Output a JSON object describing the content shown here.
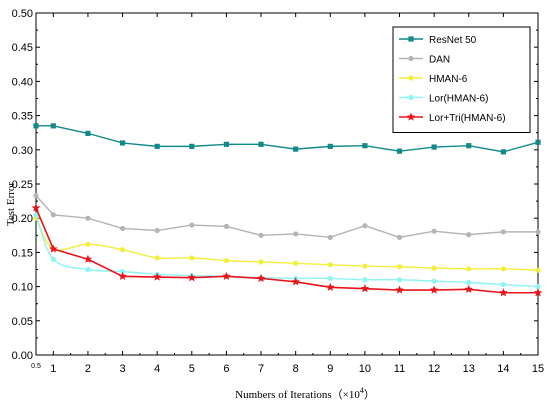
{
  "chart_data": {
    "type": "line",
    "xlabel": "Numbers of Iterations（×10",
    "xlabel_exp": "4",
    "xlabel_close": "）",
    "ylabel": "Test  Error",
    "x": [
      0.5,
      1,
      2,
      3,
      4,
      5,
      6,
      7,
      8,
      9,
      10,
      11,
      12,
      13,
      14,
      15
    ],
    "xlim": [
      0.5,
      15
    ],
    "xticks": [
      "0.5",
      "1",
      "2",
      "3",
      "4",
      "5",
      "6",
      "7",
      "8",
      "9",
      "10",
      "11",
      "12",
      "13",
      "14",
      "15"
    ],
    "ylim": [
      0,
      0.5
    ],
    "yticks": [
      "0.00",
      "0.05",
      "0.10",
      "0.15",
      "0.20",
      "0.25",
      "0.30",
      "0.35",
      "0.40",
      "0.45",
      "0.50"
    ],
    "grid": false,
    "legend_position": "top-right",
    "series": [
      {
        "name": "ResNet 50",
        "color": "#138a8a",
        "marker": "square",
        "smooth": false,
        "values": [
          0.335,
          0.335,
          0.324,
          0.31,
          0.305,
          0.305,
          0.308,
          0.308,
          0.301,
          0.305,
          0.306,
          0.298,
          0.304,
          0.306,
          0.297,
          0.311
        ]
      },
      {
        "name": "DAN",
        "color": "#b4b4b4",
        "marker": "circle",
        "smooth": false,
        "values": [
          0.233,
          0.205,
          0.2,
          0.185,
          0.182,
          0.19,
          0.188,
          0.175,
          0.177,
          0.172,
          0.189,
          0.172,
          0.181,
          0.176,
          0.18,
          0.18
        ]
      },
      {
        "name": "HMAN-6",
        "color": "#f2ef3c",
        "marker": "circle",
        "smooth": true,
        "values": [
          0.2,
          0.155,
          0.162,
          0.154,
          0.142,
          0.142,
          0.138,
          0.136,
          0.134,
          0.132,
          0.13,
          0.129,
          0.127,
          0.126,
          0.126,
          0.124
        ]
      },
      {
        "name": "Lor(HMAN-6)",
        "color": "#8ef4f4",
        "marker": "circle",
        "smooth": true,
        "values": [
          0.205,
          0.14,
          0.125,
          0.122,
          0.118,
          0.116,
          0.115,
          0.113,
          0.112,
          0.112,
          0.11,
          0.11,
          0.108,
          0.106,
          0.103,
          0.1
        ]
      },
      {
        "name": "Lor+Tri(HMAN-6)",
        "color": "#e8141c",
        "marker": "star",
        "smooth": false,
        "values": [
          0.215,
          0.155,
          0.14,
          0.115,
          0.114,
          0.113,
          0.115,
          0.112,
          0.107,
          0.099,
          0.097,
          0.095,
          0.095,
          0.096,
          0.091,
          0.091
        ]
      }
    ]
  }
}
